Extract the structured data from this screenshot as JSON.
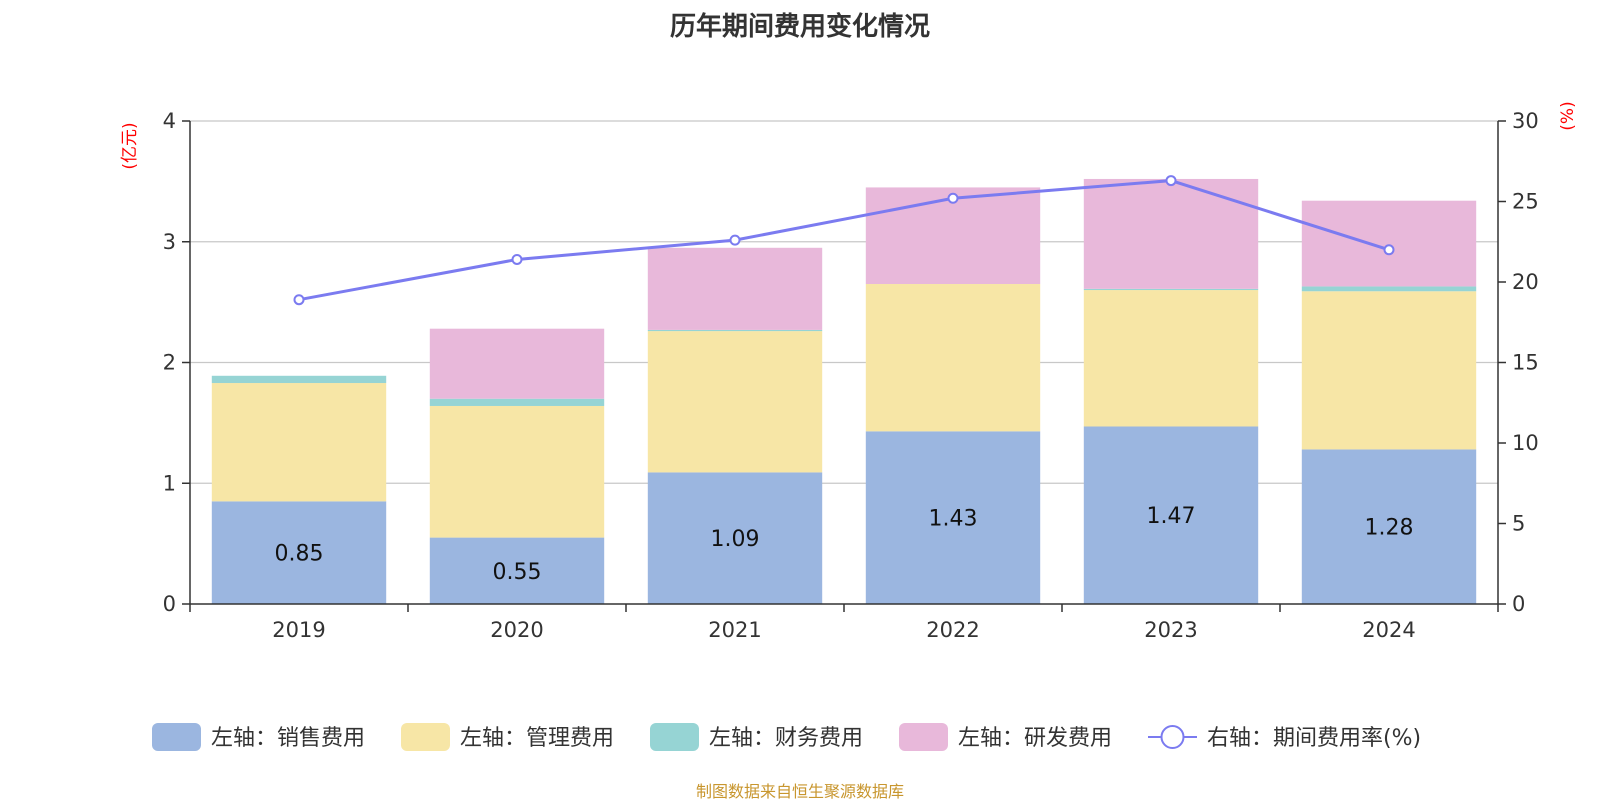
{
  "title": "历年期间费用变化情况",
  "source": "制图数据来自恒生聚源数据库",
  "chart_data": {
    "type": "bar",
    "stacked": true,
    "categories": [
      "2019",
      "2020",
      "2021",
      "2022",
      "2023",
      "2024"
    ],
    "left_axis": {
      "unit": "(亿元)",
      "ylim": [
        0,
        4
      ],
      "ticks": [
        "0",
        "1",
        "2",
        "3",
        "4"
      ]
    },
    "right_axis": {
      "unit": "(%)",
      "ylim": [
        0,
        30
      ],
      "ticks": [
        "0",
        "5",
        "10",
        "15",
        "20",
        "25",
        "30"
      ]
    },
    "grid": true,
    "legend_position": "bottom",
    "series": [
      {
        "name": "左轴：销售费用",
        "color": "#9bb6e0",
        "values": [
          0.85,
          0.55,
          1.09,
          1.43,
          1.47,
          1.28
        ],
        "labels": [
          "0.85",
          "0.55",
          "1.09",
          "1.43",
          "1.47",
          "1.28"
        ]
      },
      {
        "name": "左轴：管理费用",
        "color": "#f7e6a6",
        "values": [
          0.98,
          1.09,
          1.17,
          1.22,
          1.13,
          1.31
        ]
      },
      {
        "name": "左轴：财务费用",
        "color": "#96d4d4",
        "values": [
          0.06,
          0.06,
          0.01,
          0.0,
          0.01,
          0.04
        ]
      },
      {
        "name": "左轴：研发费用",
        "color": "#e8b8da",
        "values": [
          0.0,
          0.58,
          0.68,
          0.8,
          0.91,
          0.71
        ]
      }
    ],
    "line": {
      "name": "右轴：期间费用率(%)",
      "color": "#7b7bf0",
      "values": [
        18.9,
        21.4,
        22.6,
        25.2,
        26.3,
        22.0
      ]
    }
  }
}
